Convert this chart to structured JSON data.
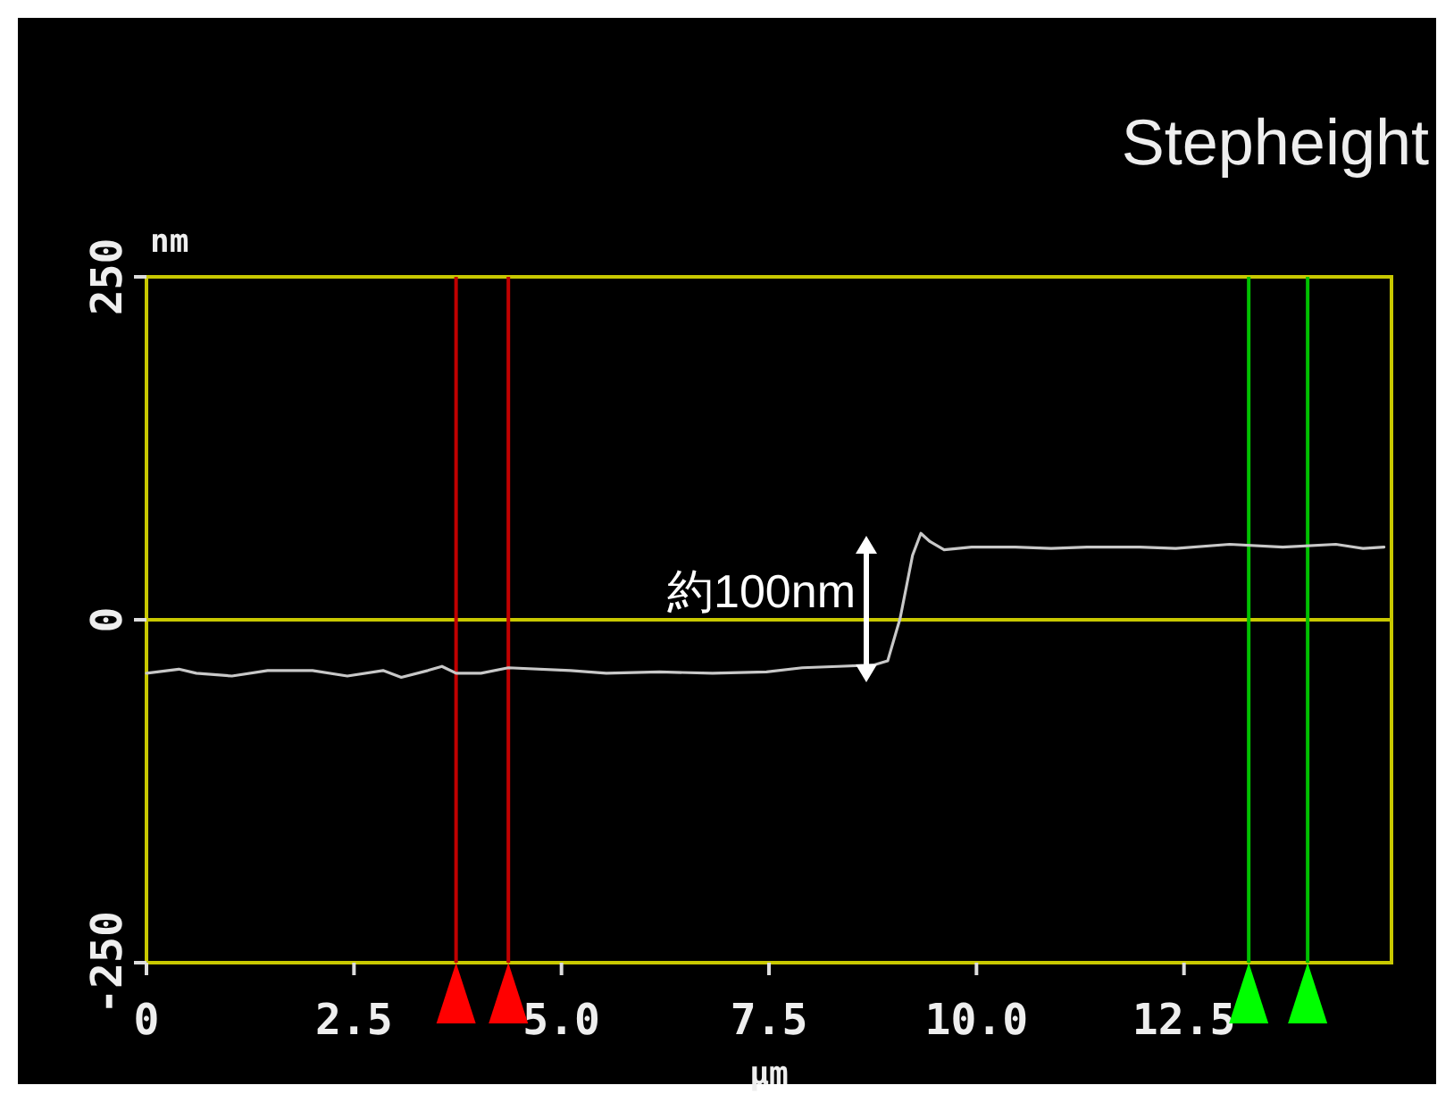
{
  "chart_data": {
    "type": "line",
    "title": "Stepheight",
    "xlabel": "μm",
    "ylabel": "nm",
    "xlim": [
      0,
      15
    ],
    "ylim": [
      -250,
      250
    ],
    "xticks": [
      0,
      {
        "value": 2.5,
        "label": "2.5"
      },
      {
        "value": 5,
        "label": "5.0"
      },
      {
        "value": 7.5,
        "label": "7.5"
      },
      {
        "value": 10,
        "label": "10.0"
      },
      {
        "value": 12.5,
        "label": "12.5"
      }
    ],
    "yticks": [
      -250,
      0,
      250
    ],
    "line_style": "solid",
    "marker": "none",
    "series": [
      {
        "color": "#c8c8c8",
        "x": [
          0,
          0.39,
          0.6,
          1.03,
          1.46,
          2.0,
          2.42,
          2.85,
          3.07,
          3.39,
          3.56,
          3.73,
          4.03,
          4.36,
          5.11,
          5.54,
          6.18,
          6.82,
          7.47,
          7.9,
          8.33,
          8.76,
          8.93,
          9.08,
          9.23,
          9.33,
          9.44,
          9.61,
          9.94,
          10.47,
          10.9,
          11.33,
          11.97,
          12.4,
          13.05,
          13.69,
          14.33,
          14.66,
          14.91
        ],
        "values": [
          -39,
          -36,
          -39,
          -41,
          -37,
          -37,
          -41,
          -37,
          -42,
          -37,
          -34,
          -39,
          -39,
          -35,
          -37,
          -39,
          -38,
          -39,
          -38,
          -35,
          -34,
          -33,
          -30,
          1,
          47,
          63,
          57,
          51,
          53,
          53,
          52,
          53,
          53,
          52,
          55,
          53,
          55,
          52,
          53
        ]
      }
    ],
    "ref_lines": [
      {
        "axis": "y",
        "value": 0,
        "color": "#c8c800"
      },
      {
        "axis": "x",
        "value": 3.73,
        "color": "#c00000"
      },
      {
        "axis": "x",
        "value": 4.36,
        "color": "#c00000"
      },
      {
        "axis": "x",
        "value": 13.28,
        "color": "#00c000"
      },
      {
        "axis": "x",
        "value": 13.99,
        "color": "#00c000"
      }
    ],
    "annotations": [
      "約100nm"
    ]
  }
}
